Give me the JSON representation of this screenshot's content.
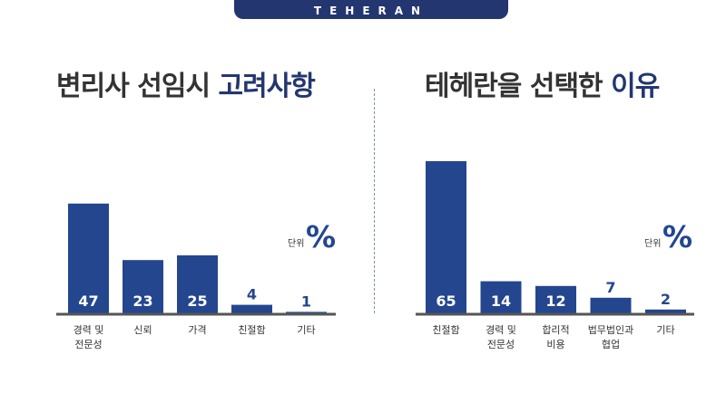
{
  "brand": "TEHERAN",
  "colors": {
    "navy": "#23366f",
    "bar": "#23468f",
    "text": "#333333"
  },
  "chart_data": [
    {
      "type": "bar",
      "title_plain": "변리사 선임시 ",
      "title_accent": "고려사항",
      "unit_word": "단위",
      "unit_symbol": "%",
      "categories": [
        [
          "경력 및",
          "전문성"
        ],
        [
          "신뢰"
        ],
        [
          "가격"
        ],
        [
          "친절함"
        ],
        [
          "기타"
        ]
      ],
      "values": [
        47,
        23,
        25,
        4,
        1
      ],
      "value_labels": [
        "47",
        "23",
        "25",
        "4",
        "1"
      ],
      "ylim": [
        0,
        65
      ]
    },
    {
      "type": "bar",
      "title_plain": "테헤란을 선택한 ",
      "title_accent": "이유",
      "unit_word": "단위",
      "unit_symbol": "%",
      "categories": [
        [
          "친절함"
        ],
        [
          "경력 및",
          "전문성"
        ],
        [
          "합리적",
          "비용"
        ],
        [
          "법무법인과",
          "협업"
        ],
        [
          "기타"
        ]
      ],
      "values": [
        65,
        14,
        12,
        7,
        2
      ],
      "value_labels": [
        "65",
        "14",
        "12",
        "7",
        "2"
      ],
      "ylim": [
        0,
        65
      ]
    }
  ]
}
